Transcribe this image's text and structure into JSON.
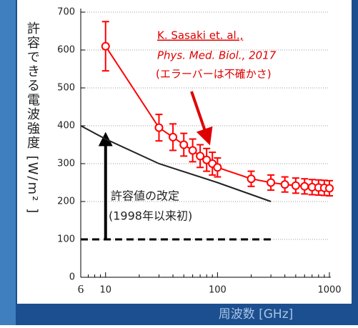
{
  "chart_data": {
    "type": "line",
    "x_label": "周波数 [GHz]",
    "y_label": "許容できる電波強度 [W/m² ]",
    "xlim": [
      6,
      1000
    ],
    "xticks": [
      6,
      10,
      100,
      1000
    ],
    "log_x": true,
    "minor_ticks": true,
    "ylim": [
      0,
      700
    ],
    "yticks": [
      0,
      100,
      200,
      300,
      400,
      500,
      600,
      700
    ],
    "grid": true,
    "series": [
      {
        "color": "#ff0000",
        "marker": "circle",
        "x": [
          10,
          30,
          40,
          50,
          60,
          70,
          80,
          90,
          100,
          200,
          300,
          400,
          500,
          600,
          700,
          800,
          900,
          1000
        ],
        "values": [
          610,
          395,
          370,
          350,
          335,
          320,
          310,
          300,
          290,
          260,
          250,
          245,
          242,
          240,
          238,
          237,
          236,
          235
        ],
        "errors": [
          65,
          35,
          35,
          30,
          30,
          30,
          30,
          30,
          25,
          20,
          20,
          20,
          20,
          20,
          20,
          20,
          20,
          20
        ]
      },
      {
        "color": "#222222",
        "x": [
          6,
          10,
          30,
          100,
          300
        ],
        "values": [
          400,
          365,
          300,
          250,
          200
        ]
      },
      {
        "color": "#000000",
        "dashed": true,
        "x": [
          6,
          300
        ],
        "values": [
          100,
          100
        ]
      }
    ],
    "citation": [
      "K. Sasaki et. al.,",
      "Phys. Med. Biol., 2017",
      "(エラーバーは不確かさ)"
    ],
    "arrow": {
      "x": 10,
      "from": 100,
      "to": 380
    },
    "arrow_text": [
      "許容値の改定",
      "(1998年以来初)"
    ]
  }
}
